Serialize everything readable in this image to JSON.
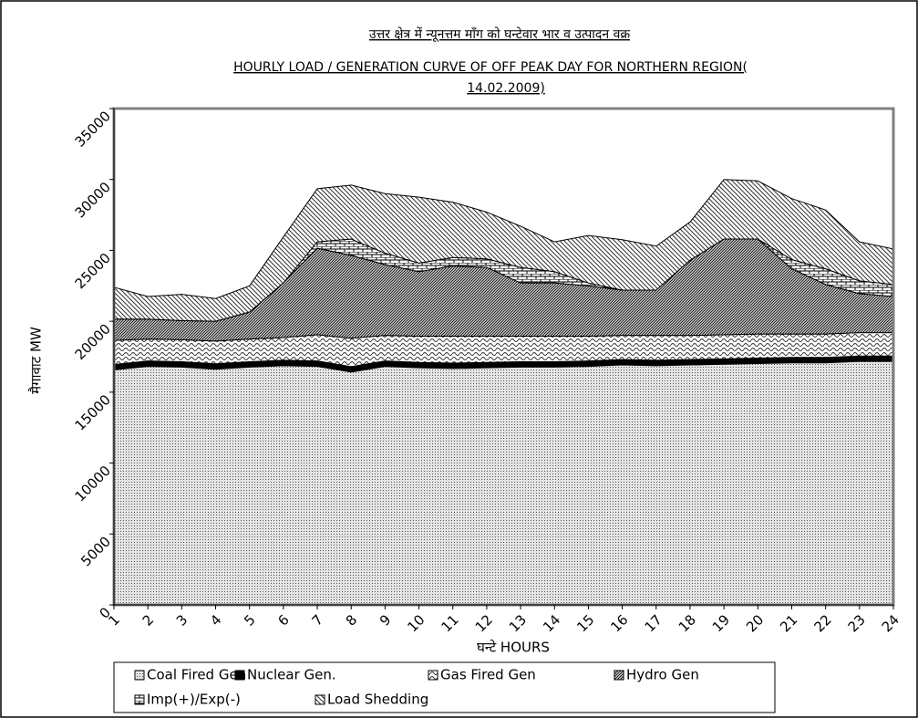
{
  "chart_data": {
    "type": "stacked-area",
    "title": [
      "उत्तर क्षेत्र में न्यूनत्तम माँग को घन्टेवार भार व उत्पादन वक्र",
      "HOURLY LOAD / GENERATION  CURVE OF OFF PEAK DAY FOR NORTHERN REGION(",
      "14.02.2009)"
    ],
    "x_label": "घन्टे HOURS",
    "y_label": "मैगावाट MW",
    "categories": [
      "1",
      "2",
      "3",
      "4",
      "5",
      "6",
      "7",
      "8",
      "9",
      "10",
      "11",
      "12",
      "13",
      "14",
      "15",
      "16",
      "17",
      "18",
      "19",
      "20",
      "21",
      "22",
      "23",
      "24"
    ],
    "ylim": [
      0,
      35000
    ],
    "yticks": [
      0,
      5000,
      10000,
      15000,
      20000,
      25000,
      30000,
      35000
    ],
    "series": [
      {
        "name": "Coal Fired Gen",
        "color": "#000000",
        "values": [
          16600,
          16850,
          16800,
          16650,
          16800,
          16900,
          16850,
          16450,
          16850,
          16750,
          16700,
          16750,
          16800,
          16800,
          16850,
          16950,
          16900,
          16950,
          17000,
          17050,
          17100,
          17100,
          17200,
          17200
        ]
      },
      {
        "name": "Nuclear  Gen.",
        "color": "#000000",
        "values": [
          350,
          350,
          350,
          350,
          350,
          350,
          350,
          350,
          350,
          350,
          350,
          350,
          350,
          350,
          350,
          350,
          350,
          350,
          350,
          350,
          350,
          350,
          350,
          350
        ]
      },
      {
        "name": "Gas Fired Gen",
        "color": "#000000",
        "values": [
          1700,
          1550,
          1550,
          1600,
          1600,
          1600,
          1850,
          2000,
          1800,
          1850,
          1900,
          1850,
          1800,
          1800,
          1750,
          1700,
          1750,
          1700,
          1700,
          1700,
          1650,
          1650,
          1650,
          1650
        ]
      },
      {
        "name": "Hydro Gen",
        "color": "#000000",
        "values": [
          1500,
          1400,
          1350,
          1400,
          1900,
          3850,
          6100,
          5850,
          5000,
          4550,
          4950,
          4850,
          3750,
          3750,
          3550,
          3200,
          3200,
          5300,
          6750,
          6700,
          4600,
          3500,
          2750,
          2550
        ]
      },
      {
        "name": "Imp(+)/Exp(-)",
        "color": "#000000",
        "values": [
          0,
          0,
          0,
          0,
          0,
          0,
          450,
          1150,
          800,
          600,
          600,
          600,
          1100,
          800,
          200,
          0,
          0,
          0,
          0,
          0,
          650,
          1100,
          900,
          850
        ]
      },
      {
        "name": "Load Shedding",
        "color": "#000000",
        "values": [
          2250,
          1600,
          1850,
          1600,
          1850,
          3250,
          3750,
          3800,
          4200,
          4650,
          3900,
          3300,
          2900,
          2100,
          3350,
          3550,
          3100,
          2700,
          4200,
          4100,
          4300,
          4150,
          2750,
          2500
        ]
      }
    ]
  }
}
